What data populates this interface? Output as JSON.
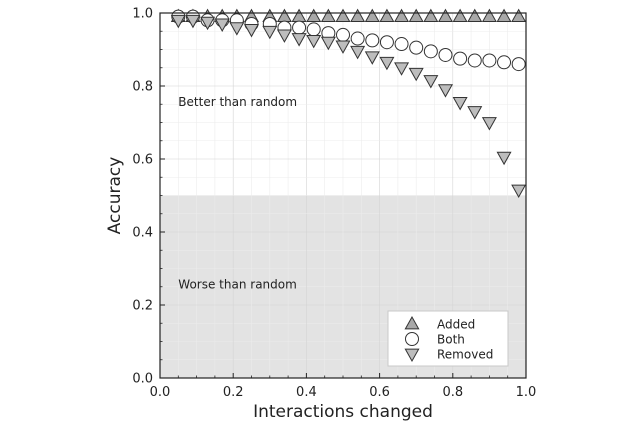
{
  "chart_data": {
    "type": "scatter",
    "xlabel": "Interactions changed",
    "ylabel": "Accuracy",
    "xlim": [
      0.0,
      1.0
    ],
    "ylim": [
      0.0,
      1.0
    ],
    "xticks": [
      "0.0",
      "0.2",
      "0.4",
      "0.6",
      "0.8",
      "1.0"
    ],
    "yticks": [
      "0.0",
      "0.2",
      "0.4",
      "0.6",
      "0.8",
      "1.0"
    ],
    "grid": true,
    "legend_position": "bottom-right",
    "shaded_region": {
      "y_from": 0.0,
      "y_to": 0.5,
      "color": "#e3e3e3"
    },
    "annotations": [
      {
        "text": "Better than random",
        "x": 0.05,
        "y": 0.745
      },
      {
        "text": "Worse than random",
        "x": 0.05,
        "y": 0.245
      }
    ],
    "series": [
      {
        "name": "Added",
        "marker": "triangle-up",
        "color": "#a8a8a8",
        "x": [
          0.05,
          0.09,
          0.13,
          0.17,
          0.21,
          0.25,
          0.3,
          0.34,
          0.38,
          0.42,
          0.46,
          0.5,
          0.54,
          0.58,
          0.62,
          0.66,
          0.7,
          0.74,
          0.78,
          0.82,
          0.86,
          0.9,
          0.94,
          0.98
        ],
        "y": [
          0.99,
          0.99,
          0.99,
          0.99,
          0.99,
          0.99,
          0.99,
          0.99,
          0.99,
          0.99,
          0.99,
          0.99,
          0.99,
          0.99,
          0.99,
          0.99,
          0.99,
          0.99,
          0.99,
          0.99,
          0.99,
          0.99,
          0.99,
          0.99
        ]
      },
      {
        "name": "Both",
        "marker": "circle",
        "color": "#ffffff",
        "x": [
          0.05,
          0.09,
          0.13,
          0.17,
          0.21,
          0.25,
          0.3,
          0.34,
          0.38,
          0.42,
          0.46,
          0.5,
          0.54,
          0.58,
          0.62,
          0.66,
          0.7,
          0.74,
          0.78,
          0.82,
          0.86,
          0.9,
          0.94,
          0.98
        ],
        "y": [
          0.99,
          0.99,
          0.98,
          0.98,
          0.98,
          0.97,
          0.97,
          0.96,
          0.96,
          0.955,
          0.945,
          0.94,
          0.93,
          0.925,
          0.92,
          0.915,
          0.905,
          0.895,
          0.885,
          0.875,
          0.87,
          0.87,
          0.865,
          0.86
        ]
      },
      {
        "name": "Removed",
        "marker": "triangle-down",
        "color": "#bdbdbd",
        "x": [
          0.05,
          0.09,
          0.13,
          0.17,
          0.21,
          0.25,
          0.3,
          0.34,
          0.38,
          0.42,
          0.46,
          0.5,
          0.54,
          0.58,
          0.62,
          0.66,
          0.7,
          0.74,
          0.78,
          0.82,
          0.86,
          0.9,
          0.94,
          0.98
        ],
        "y": [
          0.98,
          0.98,
          0.975,
          0.97,
          0.96,
          0.955,
          0.95,
          0.94,
          0.93,
          0.925,
          0.92,
          0.91,
          0.895,
          0.88,
          0.865,
          0.85,
          0.835,
          0.815,
          0.79,
          0.755,
          0.73,
          0.7,
          0.605,
          0.515
        ]
      }
    ]
  }
}
